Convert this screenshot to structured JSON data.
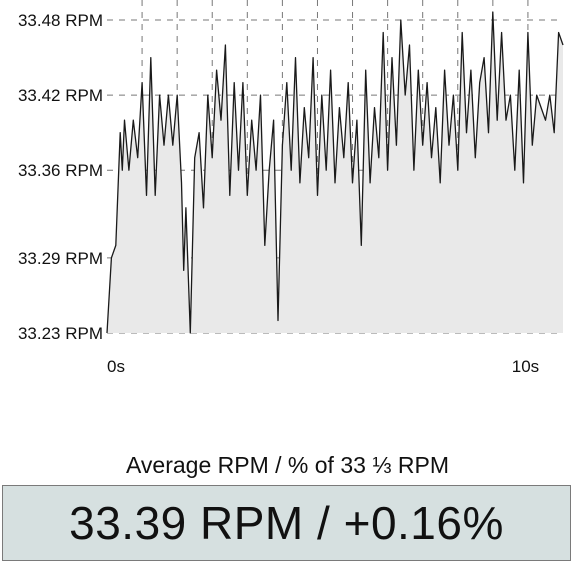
{
  "chart_data": {
    "type": "area",
    "y_ticks": [
      "33.48 RPM",
      "33.42 RPM",
      "33.36 RPM",
      "33.29 RPM",
      "33.23 RPM"
    ],
    "y_tick_values": [
      33.48,
      33.42,
      33.36,
      33.29,
      33.23
    ],
    "x_ticks": [
      "0s",
      "10s"
    ],
    "x_tick_values": [
      0,
      10
    ],
    "ylim": [
      33.23,
      33.48
    ],
    "xlim": [
      0,
      10.4
    ],
    "grid": true,
    "fill_color": "#e9e9e9",
    "line_color": "#1a1a1a",
    "grid_color": "#777777",
    "x": [
      0,
      0.1,
      0.2,
      0.3,
      0.35,
      0.4,
      0.5,
      0.6,
      0.7,
      0.8,
      0.9,
      1.0,
      1.1,
      1.2,
      1.3,
      1.4,
      1.5,
      1.6,
      1.7,
      1.75,
      1.8,
      1.9,
      2.0,
      2.1,
      2.2,
      2.3,
      2.4,
      2.5,
      2.6,
      2.7,
      2.8,
      2.9,
      3.0,
      3.1,
      3.2,
      3.3,
      3.4,
      3.5,
      3.6,
      3.7,
      3.8,
      3.9,
      4.0,
      4.1,
      4.2,
      4.3,
      4.4,
      4.5,
      4.6,
      4.7,
      4.8,
      4.9,
      5.0,
      5.1,
      5.2,
      5.3,
      5.4,
      5.5,
      5.6,
      5.7,
      5.8,
      5.9,
      6.0,
      6.1,
      6.2,
      6.3,
      6.4,
      6.5,
      6.6,
      6.7,
      6.8,
      6.9,
      7.0,
      7.1,
      7.2,
      7.3,
      7.4,
      7.5,
      7.6,
      7.7,
      7.8,
      7.9,
      8.0,
      8.1,
      8.2,
      8.3,
      8.4,
      8.5,
      8.6,
      8.7,
      8.8,
      8.9,
      9.0,
      9.1,
      9.2,
      9.3,
      9.4,
      9.5,
      9.6,
      9.7,
      9.8,
      9.9,
      10.0,
      10.1,
      10.2,
      10.3,
      10.4
    ],
    "y": [
      33.23,
      33.29,
      33.3,
      33.39,
      33.36,
      33.4,
      33.36,
      33.4,
      33.37,
      33.43,
      33.34,
      33.45,
      33.34,
      33.42,
      33.38,
      33.42,
      33.38,
      33.42,
      33.35,
      33.28,
      33.33,
      33.23,
      33.37,
      33.39,
      33.33,
      33.42,
      33.37,
      33.44,
      33.4,
      33.46,
      33.34,
      33.43,
      33.36,
      33.43,
      33.34,
      33.4,
      33.36,
      33.42,
      33.3,
      33.36,
      33.4,
      33.24,
      33.38,
      33.43,
      33.36,
      33.45,
      33.35,
      33.41,
      33.37,
      33.45,
      33.34,
      33.42,
      33.36,
      33.44,
      33.35,
      33.41,
      33.37,
      33.43,
      33.35,
      33.4,
      33.3,
      33.44,
      33.35,
      33.41,
      33.37,
      33.47,
      33.36,
      33.45,
      33.38,
      33.48,
      33.42,
      33.46,
      33.36,
      33.44,
      33.38,
      33.43,
      33.37,
      33.41,
      33.35,
      33.44,
      33.38,
      33.42,
      33.36,
      33.47,
      33.39,
      33.44,
      33.37,
      33.43,
      33.45,
      33.39,
      33.49,
      33.4,
      33.47,
      33.4,
      33.42,
      33.36,
      33.44,
      33.35,
      33.47,
      33.38,
      33.42,
      33.41,
      33.4,
      33.42,
      33.39,
      33.47,
      33.46
    ]
  },
  "summary": {
    "label": "Average RPM / % of 33 ⅓ RPM",
    "value": "33.39 RPM / +0.16%",
    "panel_color": "#d6e0e0"
  }
}
